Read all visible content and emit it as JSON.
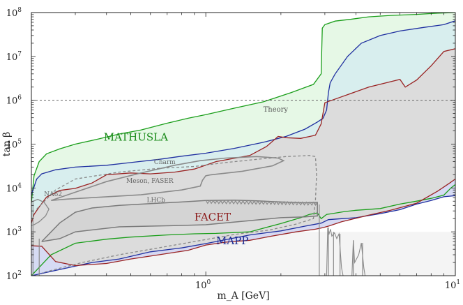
{
  "chart_data": {
    "type": "area",
    "xlabel": "m_A [GeV]",
    "ylabel": "tan β",
    "xscale": "log",
    "yscale": "log",
    "xlim": [
      0.2,
      10
    ],
    "ylim": [
      100,
      100000000
    ],
    "x_ticks": [
      {
        "value": 1,
        "label": "10",
        "sup": "0"
      },
      {
        "value": 10,
        "label": "10",
        "sup": "1"
      }
    ],
    "y_ticks": [
      {
        "value": 100,
        "label": "10",
        "sup": "2"
      },
      {
        "value": 1000,
        "label": "10",
        "sup": "3"
      },
      {
        "value": 10000,
        "label": "10",
        "sup": "4"
      },
      {
        "value": 100000,
        "label": "10",
        "sup": "5"
      },
      {
        "value": 1000000,
        "label": "10",
        "sup": "6"
      },
      {
        "value": 10000000,
        "label": "10",
        "sup": "7"
      },
      {
        "value": 100000000,
        "label": "10",
        "sup": "8"
      }
    ],
    "theory_line": {
      "y": 1000000,
      "label": "Theory"
    },
    "regions": [
      {
        "name": "MATHUSLA",
        "color": "#1a9e1a",
        "fill": "#e6f8e6",
        "upper": [
          [
            0.2,
            4600
          ],
          [
            0.205,
            19000
          ],
          [
            0.215,
            40000
          ],
          [
            0.23,
            60000
          ],
          [
            0.26,
            78000
          ],
          [
            0.3,
            100000
          ],
          [
            0.37,
            130000
          ],
          [
            0.45,
            170000
          ],
          [
            0.55,
            210000
          ],
          [
            0.7,
            300000
          ],
          [
            0.85,
            390000
          ],
          [
            1,
            470000
          ],
          [
            1.3,
            660000
          ],
          [
            1.7,
            920000
          ],
          [
            2.2,
            1500000
          ],
          [
            2.7,
            2300000
          ],
          [
            2.9,
            4000000
          ],
          [
            2.93,
            44000000
          ],
          [
            3.0,
            53000000
          ],
          [
            3.3,
            64000000
          ],
          [
            3.8,
            70000000
          ],
          [
            4.5,
            80000000
          ],
          [
            5.5,
            86000000
          ],
          [
            7,
            91000000
          ],
          [
            8.5,
            97000000
          ],
          [
            10,
            100000000
          ]
        ],
        "lower": [
          [
            0.2,
            100
          ],
          [
            0.24,
            300
          ],
          [
            0.3,
            550
          ],
          [
            0.4,
            680
          ],
          [
            0.5,
            760
          ],
          [
            0.7,
            850
          ],
          [
            0.9,
            900
          ],
          [
            1.1,
            920
          ],
          [
            1.5,
            1000
          ],
          [
            2.0,
            1550
          ],
          [
            2.4,
            2100
          ],
          [
            2.6,
            2500
          ],
          [
            2.8,
            2700
          ],
          [
            2.9,
            2000
          ],
          [
            3.05,
            2500
          ],
          [
            3.2,
            2600
          ],
          [
            3.6,
            2900
          ],
          [
            4,
            3100
          ],
          [
            5,
            3400
          ],
          [
            6,
            4300
          ],
          [
            7,
            5000
          ],
          [
            8,
            5800
          ],
          [
            9,
            6900
          ],
          [
            9.6,
            10000
          ],
          [
            10,
            12000
          ]
        ]
      },
      {
        "name": "Blue",
        "color": "#1f2fa0",
        "fill": "#d8eeee",
        "upper": [
          [
            0.2,
            7000
          ],
          [
            0.21,
            16000
          ],
          [
            0.22,
            21000
          ],
          [
            0.25,
            26000
          ],
          [
            0.3,
            30000
          ],
          [
            0.4,
            33000
          ],
          [
            0.5,
            38000
          ],
          [
            0.65,
            45000
          ],
          [
            0.8,
            53000
          ],
          [
            1,
            62000
          ],
          [
            1.3,
            80000
          ],
          [
            1.7,
            110000
          ],
          [
            2.1,
            150000
          ],
          [
            2.5,
            220000
          ],
          [
            2.8,
            320000
          ],
          [
            2.95,
            390000
          ],
          [
            3.05,
            600000
          ],
          [
            3.1,
            1500000
          ],
          [
            3.15,
            2500000
          ],
          [
            3.3,
            4000000
          ],
          [
            3.7,
            10000000
          ],
          [
            4.2,
            20000000
          ],
          [
            5,
            30000000
          ],
          [
            6,
            38000000
          ],
          [
            7.5,
            46000000
          ],
          [
            9,
            53000000
          ],
          [
            10,
            65000000
          ]
        ],
        "lower": [
          [
            0.2,
            100
          ],
          [
            0.35,
            200
          ],
          [
            0.45,
            240
          ],
          [
            0.6,
            350
          ],
          [
            0.8,
            430
          ],
          [
            1,
            540
          ],
          [
            1.5,
            850
          ],
          [
            2,
            1050
          ],
          [
            2.5,
            1350
          ],
          [
            2.9,
            1580
          ],
          [
            3.1,
            1900
          ],
          [
            3.5,
            2000
          ],
          [
            4,
            2100
          ],
          [
            5,
            2600
          ],
          [
            6,
            3200
          ],
          [
            7,
            4300
          ],
          [
            8,
            5200
          ],
          [
            9,
            6300
          ],
          [
            10,
            6700
          ]
        ]
      },
      {
        "name": "FACET",
        "color": "#992222",
        "fill": "#dcdcdc",
        "upper": [
          [
            0.2,
            1600
          ],
          [
            0.205,
            2500
          ],
          [
            0.215,
            3700
          ],
          [
            0.23,
            6200
          ],
          [
            0.26,
            8800
          ],
          [
            0.3,
            9800
          ],
          [
            0.35,
            13000
          ],
          [
            0.4,
            20000
          ],
          [
            0.5,
            22000
          ],
          [
            0.6,
            21000
          ],
          [
            0.75,
            23000
          ],
          [
            0.9,
            27000
          ],
          [
            1.1,
            40000
          ],
          [
            1.5,
            55000
          ],
          [
            1.75,
            88000
          ],
          [
            1.95,
            150000
          ],
          [
            2.1,
            140000
          ],
          [
            2.4,
            135000
          ],
          [
            2.75,
            160000
          ],
          [
            2.9,
            290000
          ],
          [
            3.0,
            880000
          ],
          [
            3.5,
            1200000
          ],
          [
            4.5,
            2000000
          ],
          [
            6,
            3000000
          ],
          [
            6.3,
            2000000
          ],
          [
            7,
            2900000
          ],
          [
            8,
            6100000
          ],
          [
            9,
            13000000
          ],
          [
            10,
            15000000
          ]
        ],
        "lower": [
          [
            0.2,
            480
          ],
          [
            0.22,
            470
          ],
          [
            0.25,
            210
          ],
          [
            0.3,
            170
          ],
          [
            0.4,
            190
          ],
          [
            0.5,
            240
          ],
          [
            0.65,
            300
          ],
          [
            0.85,
            380
          ],
          [
            1,
            500
          ],
          [
            1.2,
            580
          ],
          [
            1.5,
            640
          ],
          [
            1.8,
            780
          ],
          [
            2.3,
            1000
          ],
          [
            2.75,
            1150
          ],
          [
            2.95,
            1250
          ],
          [
            3.1,
            1350
          ],
          [
            3.5,
            1700
          ],
          [
            4.5,
            2400
          ],
          [
            5.5,
            3100
          ],
          [
            7,
            4500
          ],
          [
            8.5,
            8500
          ],
          [
            9.5,
            13000
          ],
          [
            10,
            16000
          ]
        ]
      },
      {
        "name": "LHCb",
        "color": "#7a7a7a",
        "fill": "#d4d4d4",
        "boundary": [
          [
            0.22,
            600
          ],
          [
            0.26,
            1600
          ],
          [
            0.3,
            2800
          ],
          [
            0.35,
            3500
          ],
          [
            0.45,
            4000
          ],
          [
            0.6,
            4400
          ],
          [
            0.8,
            4800
          ],
          [
            1,
            5200
          ],
          [
            1.3,
            5300
          ],
          [
            1.6,
            5100
          ],
          [
            2,
            4800
          ],
          [
            2.5,
            4600
          ],
          [
            2.8,
            4700
          ],
          [
            2.8,
            2300
          ],
          [
            2.5,
            2200
          ],
          [
            2,
            2100
          ],
          [
            1.5,
            1800
          ],
          [
            1,
            1450
          ],
          [
            0.8,
            1400
          ],
          [
            0.6,
            1350
          ],
          [
            0.45,
            1300
          ],
          [
            0.3,
            1000
          ],
          [
            0.26,
            700
          ],
          [
            0.22,
            600
          ]
        ]
      }
    ],
    "annotations": [
      {
        "text": "MATHUSLA",
        "color": "#1a8a1a",
        "size": 15,
        "x": 0.39,
        "y": 120000
      },
      {
        "text": "FACET",
        "color": "#8b1a1a",
        "size": 15,
        "x": 0.9,
        "y": 1800
      },
      {
        "text": "MAPP",
        "color": "#1a2a90",
        "size": 15,
        "x": 1.1,
        "y": 520
      },
      {
        "text": "Theory",
        "color": "#555555",
        "size": 10,
        "x": 1.7,
        "y": 550000
      },
      {
        "text": "Charm",
        "color": "#666666",
        "size": 9,
        "x": 0.62,
        "y": 35000
      },
      {
        "text": "Meson, FASER",
        "color": "#666666",
        "size": 9,
        "x": 0.48,
        "y": 13000
      },
      {
        "text": "NA62",
        "color": "#666666",
        "size": 9,
        "x": 0.225,
        "y": 6500
      },
      {
        "text": "LHCb",
        "color": "#666666",
        "size": 9,
        "x": 0.58,
        "y": 4800
      }
    ]
  }
}
